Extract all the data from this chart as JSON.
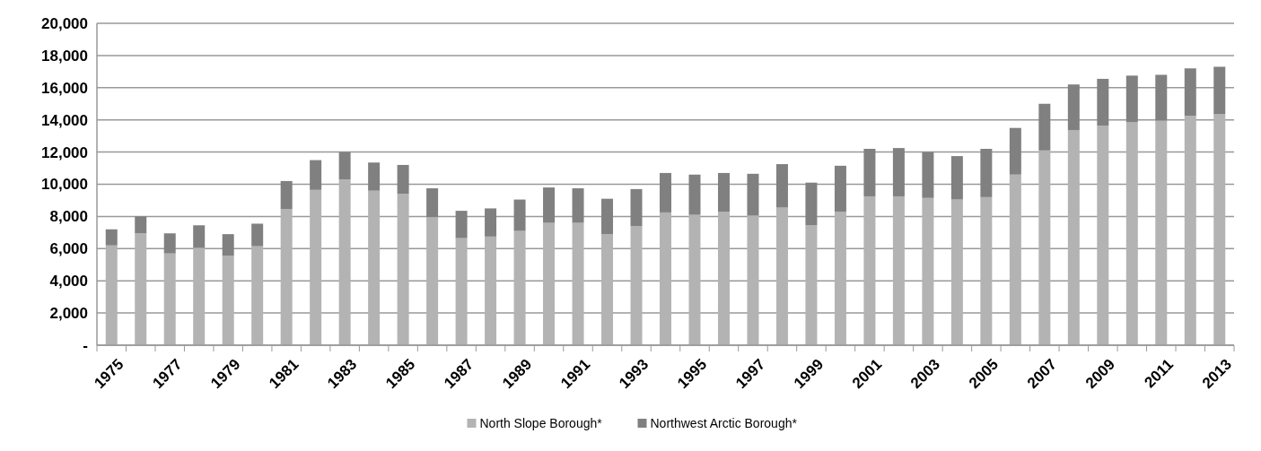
{
  "chart_data": {
    "type": "bar",
    "stacked": true,
    "categories": [
      "1975",
      null,
      "1977",
      null,
      "1979",
      null,
      "1981",
      null,
      "1983",
      null,
      "1985",
      null,
      "1987",
      null,
      "1989",
      null,
      "1991",
      null,
      "1993",
      null,
      "1995",
      null,
      "1997",
      null,
      "1999",
      null,
      "2001",
      null,
      "2003",
      null,
      "2005",
      null,
      "2007",
      null,
      "2009",
      null,
      "2011",
      null,
      "2013"
    ],
    "series": [
      {
        "name": "North Slope Borough*",
        "color": "#b3b3b3",
        "values": [
          6200,
          6950,
          5700,
          6050,
          5550,
          6150,
          8450,
          9650,
          10300,
          9600,
          9400,
          7950,
          6650,
          6750,
          7100,
          7600,
          7600,
          6900,
          7400,
          8250,
          8100,
          8300,
          8050,
          8550,
          7450,
          8300,
          9250,
          9250,
          9150,
          9050,
          9200,
          10600,
          12100,
          13350,
          13650,
          13850,
          13950,
          14250,
          14350
        ]
      },
      {
        "name": "Northwest Arctic Borough*",
        "color": "#808080",
        "values": [
          1000,
          1050,
          1250,
          1400,
          1350,
          1400,
          1750,
          1850,
          1700,
          1750,
          1800,
          1800,
          1700,
          1750,
          1950,
          2200,
          2150,
          2200,
          2300,
          2450,
          2500,
          2400,
          2600,
          2700,
          2650,
          2850,
          2950,
          3000,
          2850,
          2700,
          3000,
          2900,
          2900,
          2850,
          2900,
          2900,
          2850,
          2950,
          2950
        ]
      }
    ],
    "ylim": [
      0,
      20000
    ],
    "yticks": [
      {
        "value": 0,
        "label": "-"
      },
      {
        "value": 2000,
        "label": "2,000"
      },
      {
        "value": 4000,
        "label": "4,000"
      },
      {
        "value": 6000,
        "label": "6,000"
      },
      {
        "value": 8000,
        "label": "8,000"
      },
      {
        "value": 10000,
        "label": "10,000"
      },
      {
        "value": 12000,
        "label": "12,000"
      },
      {
        "value": 14000,
        "label": "14,000"
      },
      {
        "value": 16000,
        "label": "16,000"
      },
      {
        "value": 18000,
        "label": "18,000"
      },
      {
        "value": 20000,
        "label": "20,000"
      }
    ],
    "grid": "y",
    "legend": "bottom"
  }
}
